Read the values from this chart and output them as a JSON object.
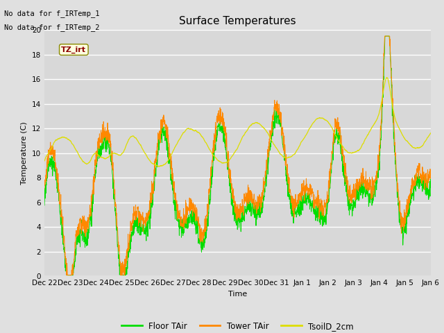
{
  "title": "Surface Temperatures",
  "xlabel": "Time",
  "ylabel": "Temperature (C)",
  "ylim": [
    0,
    20
  ],
  "yticks": [
    0,
    2,
    4,
    6,
    8,
    10,
    12,
    14,
    16,
    18,
    20
  ],
  "annotation_lines": [
    "No data for f_IRTemp_1",
    "No data for f_IRTemp_2"
  ],
  "tz_label": "TZ_irt",
  "bg_color": "#e0e0e0",
  "plot_bg_color": "#d8d8d8",
  "legend_entries": [
    "Floor TAir",
    "Tower TAir",
    "TsoilD_2cm"
  ],
  "line_colors": [
    "#00dd00",
    "#ff8800",
    "#dddd00"
  ],
  "xtick_labels": [
    "Dec 22",
    "Dec 23",
    "Dec 24",
    "Dec 25",
    "Dec 26",
    "Dec 27",
    "Dec 28",
    "Dec 29",
    "Dec 30",
    "Dec 31",
    "Jan 1",
    "Jan 2",
    "Jan 3",
    "Jan 4",
    "Jan 5",
    "Jan 6"
  ],
  "n_points": 2000
}
